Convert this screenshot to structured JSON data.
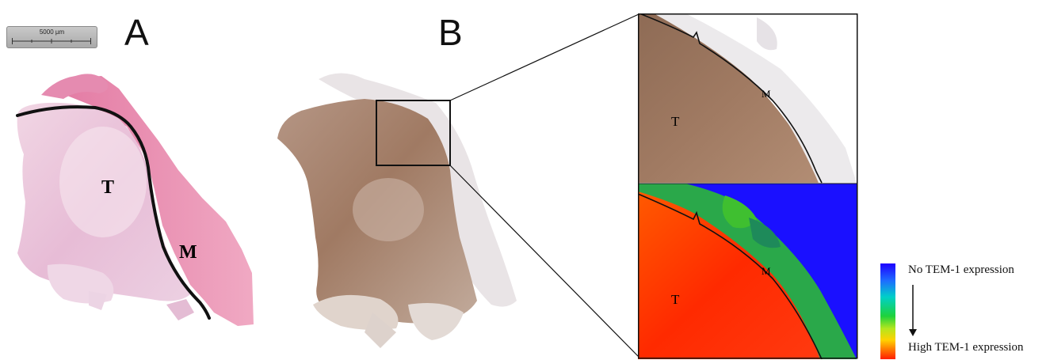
{
  "panel_a": {
    "letter": "A",
    "scale_bar_label": "5000 µm",
    "label_tumor": "T",
    "label_margin": "M"
  },
  "panel_b": {
    "letter": "B",
    "zoom_top": {
      "label_tumor": "T",
      "label_margin": "M"
    },
    "zoom_bottom": {
      "label_tumor": "T",
      "label_margin": "M"
    }
  },
  "legend": {
    "top_label": "No TEM-1 expression",
    "bottom_label": "High TEM-1 expression"
  },
  "colors": {
    "he_stain": "#e8a8c8",
    "he_margin": "#e05a8a",
    "ihc_stain": "#9a7058",
    "heat_high": "#ff2a00",
    "heat_low": "#1a10ff"
  }
}
